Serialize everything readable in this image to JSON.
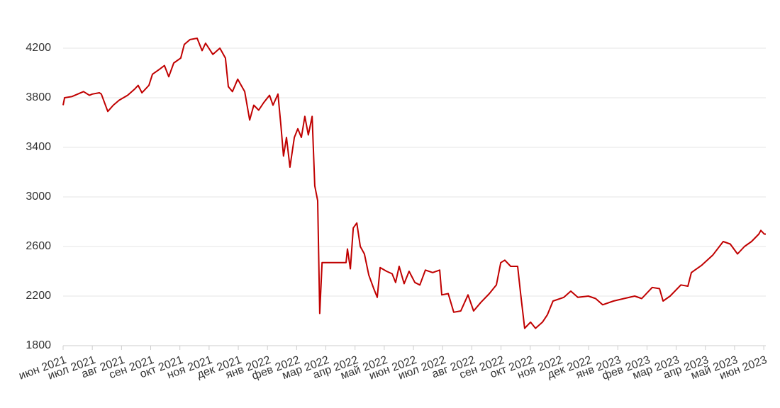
{
  "chart_data": {
    "type": "line",
    "x": [
      0,
      0.05,
      0.3,
      0.5,
      0.7,
      0.9,
      1.0,
      1.24,
      1.31,
      1.53,
      1.72,
      1.92,
      2.21,
      2.45,
      2.57,
      2.7,
      2.94,
      3.06,
      3.3,
      3.47,
      3.62,
      3.79,
      4.03,
      4.15,
      4.35,
      4.59,
      4.76,
      4.88,
      5.13,
      5.37,
      5.56,
      5.66,
      5.8,
      5.98,
      6.22,
      6.39,
      6.53,
      6.7,
      6.87,
      7.07,
      7.19,
      7.36,
      7.46,
      7.55,
      7.65,
      7.77,
      7.92,
      8.04,
      8.16,
      8.28,
      8.4,
      8.53,
      8.62,
      8.72,
      8.79,
      8.87,
      9.69,
      9.74,
      9.84,
      9.94,
      10.06,
      10.18,
      10.32,
      10.47,
      10.64,
      10.76,
      10.86,
      11.08,
      11.27,
      11.39,
      11.51,
      11.68,
      11.85,
      12.05,
      12.22,
      12.41,
      12.66,
      12.9,
      12.97,
      13.19,
      13.38,
      13.62,
      13.87,
      14.06,
      14.31,
      14.6,
      14.84,
      14.99,
      15.13,
      15.33,
      15.57,
      15.67,
      15.81,
      16.01,
      16.18,
      16.42,
      16.59,
      16.78,
      17.15,
      17.39,
      17.63,
      17.99,
      18.24,
      18.48,
      18.85,
      19.21,
      19.58,
      19.82,
      20.18,
      20.43,
      20.55,
      20.79,
      21.16,
      21.4,
      21.52,
      21.88,
      22.25,
      22.61,
      22.85,
      23.1,
      23.34,
      23.58,
      23.83,
      23.9,
      24.02,
      24.07
    ],
    "series": [
      {
        "color": "#c00000",
        "values": [
          3740,
          3800,
          3810,
          3830,
          3850,
          3820,
          3830,
          3840,
          3830,
          3690,
          3740,
          3780,
          3820,
          3870,
          3900,
          3840,
          3900,
          3990,
          4030,
          4060,
          3970,
          4080,
          4120,
          4230,
          4270,
          4280,
          4180,
          4240,
          4150,
          4200,
          4120,
          3890,
          3850,
          3950,
          3850,
          3620,
          3740,
          3700,
          3760,
          3820,
          3740,
          3830,
          3580,
          3330,
          3480,
          3240,
          3480,
          3550,
          3480,
          3650,
          3500,
          3650,
          3090,
          2970,
          2060,
          2470,
          2470,
          2580,
          2420,
          2750,
          2790,
          2600,
          2540,
          2370,
          2260,
          2190,
          2430,
          2400,
          2380,
          2310,
          2440,
          2300,
          2400,
          2310,
          2290,
          2410,
          2390,
          2410,
          2210,
          2220,
          2070,
          2080,
          2210,
          2080,
          2150,
          2220,
          2290,
          2470,
          2490,
          2440,
          2440,
          2220,
          1940,
          1990,
          1940,
          1990,
          2050,
          2160,
          2190,
          2240,
          2190,
          2200,
          2180,
          2130,
          2160,
          2180,
          2200,
          2180,
          2270,
          2260,
          2160,
          2200,
          2290,
          2280,
          2390,
          2450,
          2530,
          2640,
          2620,
          2540,
          2600,
          2640,
          2700,
          2730,
          2700,
          2700
        ]
      }
    ],
    "xlim": [
      0,
      24.07
    ],
    "xticks": [
      {
        "value": 0,
        "label": "июн 2021"
      },
      {
        "value": 1,
        "label": "июл 2021"
      },
      {
        "value": 2,
        "label": "авг 2021"
      },
      {
        "value": 3,
        "label": "сен 2021"
      },
      {
        "value": 4,
        "label": "окт 2021"
      },
      {
        "value": 5,
        "label": "ноя 2021"
      },
      {
        "value": 6,
        "label": "дек 2021"
      },
      {
        "value": 7,
        "label": "янв 2022"
      },
      {
        "value": 8,
        "label": "фев 2022"
      },
      {
        "value": 9,
        "label": "мар 2022"
      },
      {
        "value": 10,
        "label": "апр 2022"
      },
      {
        "value": 11,
        "label": "май 2022"
      },
      {
        "value": 12,
        "label": "июн 2022"
      },
      {
        "value": 13,
        "label": "июл 2022"
      },
      {
        "value": 14,
        "label": "авг 2022"
      },
      {
        "value": 15,
        "label": "сен 2022"
      },
      {
        "value": 16,
        "label": "окт 2022"
      },
      {
        "value": 17,
        "label": "ноя 2022"
      },
      {
        "value": 18,
        "label": "дек 2022"
      },
      {
        "value": 19,
        "label": "янв 2023"
      },
      {
        "value": 20,
        "label": "фев 2023"
      },
      {
        "value": 21,
        "label": "мар 2023"
      },
      {
        "value": 22,
        "label": "апр 2023"
      },
      {
        "value": 23,
        "label": "май 2023"
      },
      {
        "value": 24,
        "label": "июн 2023"
      }
    ],
    "ylim": [
      1800,
      4400
    ],
    "yticks": [
      1800,
      2200,
      2600,
      3000,
      3400,
      3800,
      4200
    ],
    "grid": true
  }
}
